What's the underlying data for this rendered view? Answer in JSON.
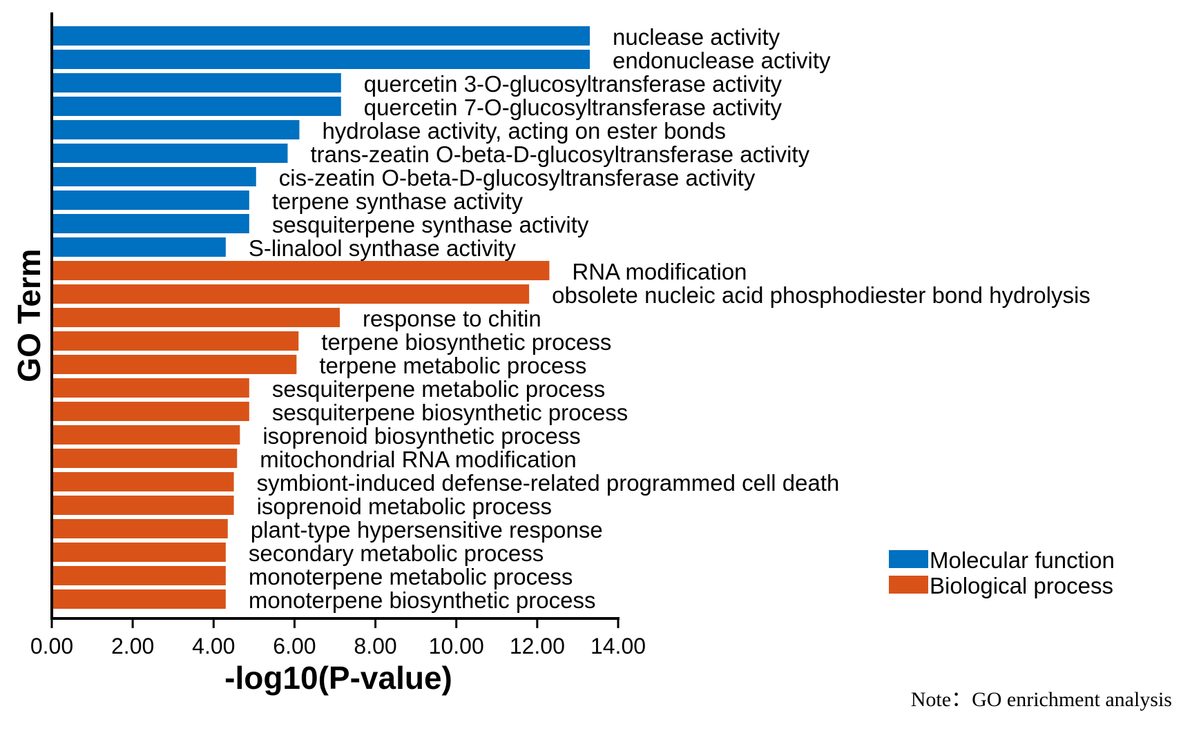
{
  "chart_data": {
    "type": "bar",
    "orientation": "horizontal",
    "xlabel": "-log10(P-value)",
    "ylabel": "GO Term",
    "xlim": [
      0,
      14
    ],
    "xticks": [
      "0.00",
      "2.00",
      "4.00",
      "6.00",
      "8.00",
      "10.00",
      "12.00",
      "14.00"
    ],
    "grid": false,
    "legend_position": "bottom-right",
    "note": "Note：GO enrichment analysis",
    "series": [
      {
        "name": "Molecular function",
        "color": "#0070C0",
        "categories": [
          "nuclease activity",
          "endonuclease activity",
          "quercetin 3-O-glucosyltransferase activity",
          "quercetin 7-O-glucosyltransferase activity",
          "hydrolase activity, acting on ester bonds",
          "trans-zeatin O-beta-D-glucosyltransferase activity",
          "cis-zeatin O-beta-D-glucosyltransferase activity",
          "terpene synthase activity",
          "sesquiterpene synthase activity",
          "S-linalool synthase activity"
        ],
        "values": [
          13.3,
          13.3,
          7.15,
          7.15,
          6.12,
          5.83,
          5.05,
          4.88,
          4.88,
          4.3
        ]
      },
      {
        "name": "Biological process",
        "color": "#D95319",
        "categories": [
          "RNA modification",
          "obsolete nucleic acid phosphodiester bond hydrolysis",
          "response to chitin",
          "terpene biosynthetic process",
          "terpene metabolic process",
          "sesquiterpene metabolic process",
          "sesquiterpene biosynthetic process",
          "isoprenoid biosynthetic process",
          "mitochondrial RNA modification",
          "symbiont-induced defense-related programmed cell death",
          "isoprenoid metabolic process",
          "plant-type hypersensitive response",
          "secondary metabolic process",
          "monoterpene metabolic process",
          "monoterpene biosynthetic process"
        ],
        "values": [
          12.3,
          11.8,
          7.12,
          6.1,
          6.05,
          4.88,
          4.88,
          4.65,
          4.58,
          4.5,
          4.5,
          4.35,
          4.3,
          4.3,
          4.3
        ]
      }
    ]
  }
}
